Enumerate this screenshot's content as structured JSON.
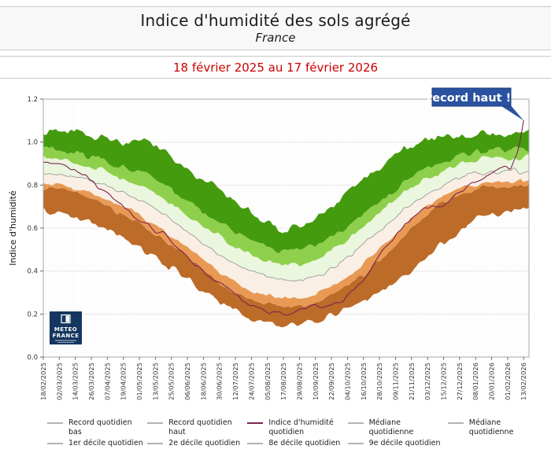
{
  "header": {
    "title": "Indice d'humidité des sols agrégé",
    "subtitle": "France"
  },
  "period": {
    "text": "18 février 2025 au 17 février 2026",
    "color": "#cc0000"
  },
  "annotation": {
    "text": "record haut !!",
    "bg": "#2a52a0",
    "border": "#1c3a78",
    "text_color": "#ffffff"
  },
  "logo": {
    "line1": "METEO",
    "line2": "FRANCE",
    "bg": "#15365f"
  },
  "chart_data": {
    "type": "area",
    "title": "Indice d'humidité des sols agrégé",
    "subtitle": "France",
    "period": "18 février 2025 au 17 février 2026",
    "xlabel": "",
    "ylabel": "Indice d'humidité",
    "ylim": [
      0.0,
      1.2
    ],
    "yticks": [
      0.0,
      0.2,
      0.4,
      0.6,
      0.8,
      1.0,
      1.2
    ],
    "grid": true,
    "x_tick_interval_days": 12,
    "domain_days": [
      0,
      364
    ],
    "x_tick_labels": [
      "18/02/2025",
      "02/03/2025",
      "14/03/2025",
      "26/03/2025",
      "07/04/2025",
      "19/04/2025",
      "01/05/2025",
      "13/05/2025",
      "25/05/2025",
      "06/06/2025",
      "18/06/2025",
      "30/06/2025",
      "12/07/2025",
      "24/07/2025",
      "05/08/2025",
      "17/08/2025",
      "29/08/2025",
      "10/09/2025",
      "22/09/2025",
      "04/10/2025",
      "16/10/2025",
      "28/10/2025",
      "09/11/2025",
      "21/11/2025",
      "03/12/2025",
      "15/12/2025",
      "27/12/2025",
      "08/01/2026",
      "20/01/2026",
      "01/02/2026",
      "13/02/2026"
    ],
    "anchor_days": [
      0,
      15,
      30,
      45,
      60,
      75,
      90,
      105,
      120,
      135,
      150,
      165,
      180,
      195,
      210,
      225,
      240,
      255,
      270,
      285,
      300,
      315,
      330,
      345,
      350,
      354,
      357,
      360,
      364
    ],
    "boundaries": {
      "record_bas": [
        0.68,
        0.66,
        0.63,
        0.59,
        0.55,
        0.5,
        0.44,
        0.38,
        0.31,
        0.25,
        0.2,
        0.17,
        0.15,
        0.16,
        0.18,
        0.22,
        0.26,
        0.31,
        0.38,
        0.46,
        0.53,
        0.6,
        0.66,
        0.67,
        0.67,
        0.68,
        0.68,
        0.68,
        0.68
      ],
      "d1": [
        0.79,
        0.78,
        0.75,
        0.71,
        0.66,
        0.61,
        0.55,
        0.48,
        0.4,
        0.33,
        0.28,
        0.25,
        0.23,
        0.24,
        0.27,
        0.32,
        0.38,
        0.47,
        0.56,
        0.65,
        0.72,
        0.76,
        0.79,
        0.79,
        0.79,
        0.8,
        0.8,
        0.8,
        0.81
      ],
      "d2": [
        0.81,
        0.8,
        0.78,
        0.74,
        0.7,
        0.65,
        0.59,
        0.52,
        0.45,
        0.38,
        0.32,
        0.29,
        0.27,
        0.28,
        0.31,
        0.36,
        0.43,
        0.52,
        0.61,
        0.69,
        0.75,
        0.79,
        0.81,
        0.81,
        0.81,
        0.82,
        0.82,
        0.82,
        0.83
      ],
      "mediane": [
        0.86,
        0.85,
        0.83,
        0.8,
        0.76,
        0.72,
        0.66,
        0.6,
        0.53,
        0.47,
        0.41,
        0.38,
        0.35,
        0.36,
        0.39,
        0.45,
        0.52,
        0.6,
        0.68,
        0.75,
        0.8,
        0.84,
        0.86,
        0.86,
        0.86,
        0.87,
        0.86,
        0.87,
        0.87
      ],
      "d8": [
        0.93,
        0.92,
        0.9,
        0.87,
        0.83,
        0.79,
        0.74,
        0.68,
        0.61,
        0.55,
        0.49,
        0.45,
        0.42,
        0.44,
        0.47,
        0.53,
        0.6,
        0.68,
        0.76,
        0.82,
        0.87,
        0.9,
        0.92,
        0.92,
        0.92,
        0.93,
        0.92,
        0.93,
        0.93
      ],
      "d9": [
        0.97,
        0.96,
        0.94,
        0.91,
        0.88,
        0.85,
        0.8,
        0.74,
        0.68,
        0.62,
        0.56,
        0.52,
        0.49,
        0.51,
        0.54,
        0.6,
        0.67,
        0.74,
        0.81,
        0.87,
        0.91,
        0.94,
        0.96,
        0.96,
        0.96,
        0.97,
        0.96,
        0.97,
        0.97
      ],
      "record_haut": [
        1.04,
        1.05,
        1.03,
        1.01,
        1.0,
        1.02,
        0.97,
        0.88,
        0.82,
        0.77,
        0.7,
        0.64,
        0.59,
        0.62,
        0.67,
        0.74,
        0.82,
        0.9,
        0.97,
        1.01,
        1.02,
        1.03,
        1.04,
        1.02,
        1.03,
        1.04,
        1.03,
        1.04,
        1.05
      ]
    },
    "bands": [
      {
        "from": "record_bas",
        "to": "d1",
        "fill": "#bc6b28",
        "name": "record bas → 1er décile"
      },
      {
        "from": "d1",
        "to": "d2",
        "fill": "#e89a55",
        "name": "1er → 2e décile"
      },
      {
        "from": "d2",
        "to": "mediane",
        "fill": "#f9efe5",
        "name": "2e décile → médiane"
      },
      {
        "from": "mediane",
        "to": "d8",
        "fill": "#eaf6dd",
        "name": "médiane → 8e décile"
      },
      {
        "from": "d8",
        "to": "d9",
        "fill": "#8ed04b",
        "name": "8e → 9e décile"
      },
      {
        "from": "d9",
        "to": "record_haut",
        "fill": "#459b0e",
        "name": "9e décile → record haut"
      }
    ],
    "indice": {
      "name": "Indice d'humidité quotidien",
      "values": [
        0.91,
        0.9,
        0.85,
        0.78,
        0.7,
        0.63,
        0.57,
        0.48,
        0.4,
        0.33,
        0.26,
        0.22,
        0.2,
        0.23,
        0.23,
        0.27,
        0.36,
        0.5,
        0.6,
        0.68,
        0.7,
        0.79,
        0.84,
        0.89,
        0.87,
        0.92,
        0.99,
        1.1,
        1.1
      ],
      "end_day": 360,
      "color": "#7d2352"
    },
    "mediane_line_color": "#9b9b9b",
    "frame_color": "#a9a9a9",
    "gridline_color": "#e4e4e4",
    "tick_color": "#555555",
    "label_color": "#333333",
    "noise": {
      "wavelength_days": 5.5,
      "amplitudes": {
        "record_bas": 0.016,
        "d1": 0.01,
        "d2": 0.01,
        "mediane": 0.01,
        "d8": 0.012,
        "d9": 0.014,
        "record_haut": 0.018,
        "indice": 0.012
      }
    }
  },
  "legend": {
    "swatch_gray": "#b3b3b3",
    "items": [
      {
        "label": "Record quotidien\nbas",
        "color": "#b3b3b3",
        "col": 1,
        "row": 1
      },
      {
        "label": "1er décile quotidien",
        "color": "#b3b3b3",
        "col": 1,
        "row": 2
      },
      {
        "label": "Record quotidien\nhaut",
        "color": "#b3b3b3",
        "col": 2,
        "row": 1
      },
      {
        "label": "2e décile quotidien",
        "color": "#b3b3b3",
        "col": 2,
        "row": 2
      },
      {
        "label": "Indice d'humidité\nquotidien",
        "color": "#7d2352",
        "col": 3,
        "row": 1
      },
      {
        "label": "8e décile quotidien",
        "color": "#b3b3b3",
        "col": 3,
        "row": 2
      },
      {
        "label": "Médiane\nquotidienne",
        "color": "#b3b3b3",
        "col": 4,
        "row": 1
      },
      {
        "label": "9e décile quotidien",
        "color": "#b3b3b3",
        "col": 4,
        "row": 2
      },
      {
        "label": "Médiane\nquotidienne",
        "color": "#b3b3b3",
        "col": 5,
        "row": 1
      }
    ]
  }
}
